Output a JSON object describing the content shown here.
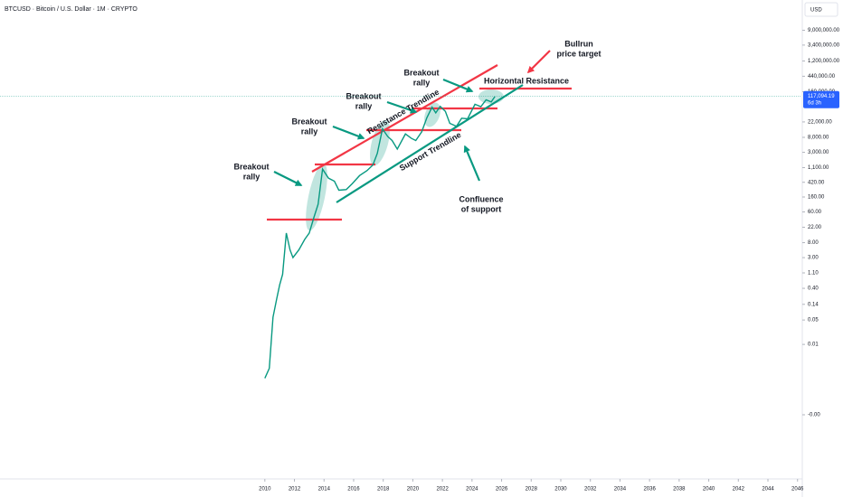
{
  "chart_data": {
    "type": "line",
    "title": "BTCUSD · Bitcoin / U.S. Dollar · 1M · CRYPTO",
    "currency": "USD",
    "log_scale": true,
    "grid": false,
    "xlim": [
      1992.1,
      2046.2
    ],
    "xticks": [
      2010,
      2012,
      2014,
      2016,
      2018,
      2020,
      2022,
      2024,
      2026,
      2028,
      2030,
      2032,
      2034,
      2036,
      2038,
      2040,
      2042,
      2044,
      2046
    ],
    "ylim": [
      0,
      20000000
    ],
    "yticks": [
      {
        "value": 9000000,
        "label": "9,000,000.00"
      },
      {
        "value": 3400000,
        "label": "3,400,000.00"
      },
      {
        "value": 1200000,
        "label": "1,200,000.00"
      },
      {
        "value": 440000,
        "label": "440,000.00"
      },
      {
        "value": 160000,
        "label": "160,000.00"
      },
      {
        "value": 22000,
        "label": "22,000.00"
      },
      {
        "value": 8000,
        "label": "8,000.00"
      },
      {
        "value": 3000,
        "label": "3,000.00"
      },
      {
        "value": 1100,
        "label": "1,100.00"
      },
      {
        "value": 420,
        "label": "420.00"
      },
      {
        "value": 160,
        "label": "160.00"
      },
      {
        "value": 60,
        "label": "60.00"
      },
      {
        "value": 22,
        "label": "22.00"
      },
      {
        "value": 8,
        "label": "8.00"
      },
      {
        "value": 3,
        "label": "3.00"
      },
      {
        "value": 1.1,
        "label": "1.10"
      },
      {
        "value": 0.4,
        "label": "0.40"
      },
      {
        "value": 0.14,
        "label": "0.14"
      },
      {
        "value": 0.05,
        "label": "0.05"
      },
      {
        "value": 0.01,
        "label": "0.01"
      },
      {
        "value": 0,
        "label": "-0.00"
      }
    ],
    "last_price": {
      "value": 117094.19,
      "label": "117,094.19"
    },
    "countdown": "6d 3h",
    "series": [
      {
        "name": "BTCUSD",
        "color": "#089981",
        "x": [
          2010.0,
          2010.3,
          2010.55,
          2010.8,
          2011.0,
          2011.2,
          2011.45,
          2011.7,
          2011.9,
          2012.3,
          2012.7,
          2013.0,
          2013.3,
          2013.6,
          2013.9,
          2014.3,
          2014.7,
          2015.0,
          2015.5,
          2015.9,
          2016.4,
          2016.9,
          2017.3,
          2017.6,
          2017.95,
          2018.3,
          2018.6,
          2018.95,
          2019.5,
          2019.9,
          2020.2,
          2020.6,
          2020.95,
          2021.3,
          2021.55,
          2021.85,
          2022.2,
          2022.5,
          2022.95,
          2023.3,
          2023.7,
          2024.2,
          2024.6,
          2024.95,
          2025.3,
          2025.55
        ],
        "values": [
          0.001,
          0.002,
          0.06,
          0.2,
          0.5,
          1.0,
          15,
          5,
          3,
          5,
          10,
          15,
          40,
          100,
          1000,
          550,
          450,
          250,
          260,
          380,
          650,
          900,
          1300,
          2800,
          14000,
          8500,
          6500,
          3700,
          10000,
          7500,
          6500,
          11500,
          29000,
          58000,
          40000,
          61000,
          44000,
          20000,
          16500,
          28000,
          27000,
          70000,
          60000,
          94000,
          82000,
          117094.19
        ]
      }
    ],
    "annotations": {
      "breakout_1": [
        "Breakout",
        "rally"
      ],
      "breakout_2": [
        "Breakout",
        "rally"
      ],
      "breakout_3": [
        "Breakout",
        "rally"
      ],
      "breakout_4": [
        "Breakout",
        "rally"
      ],
      "resistance": "Resistance Trendline",
      "support": "Support Trendline",
      "confluence": [
        "Confluence",
        "of support"
      ],
      "target": [
        "Bullrun",
        "price target"
      ],
      "horizontal": "Horizontal Resistance"
    }
  }
}
